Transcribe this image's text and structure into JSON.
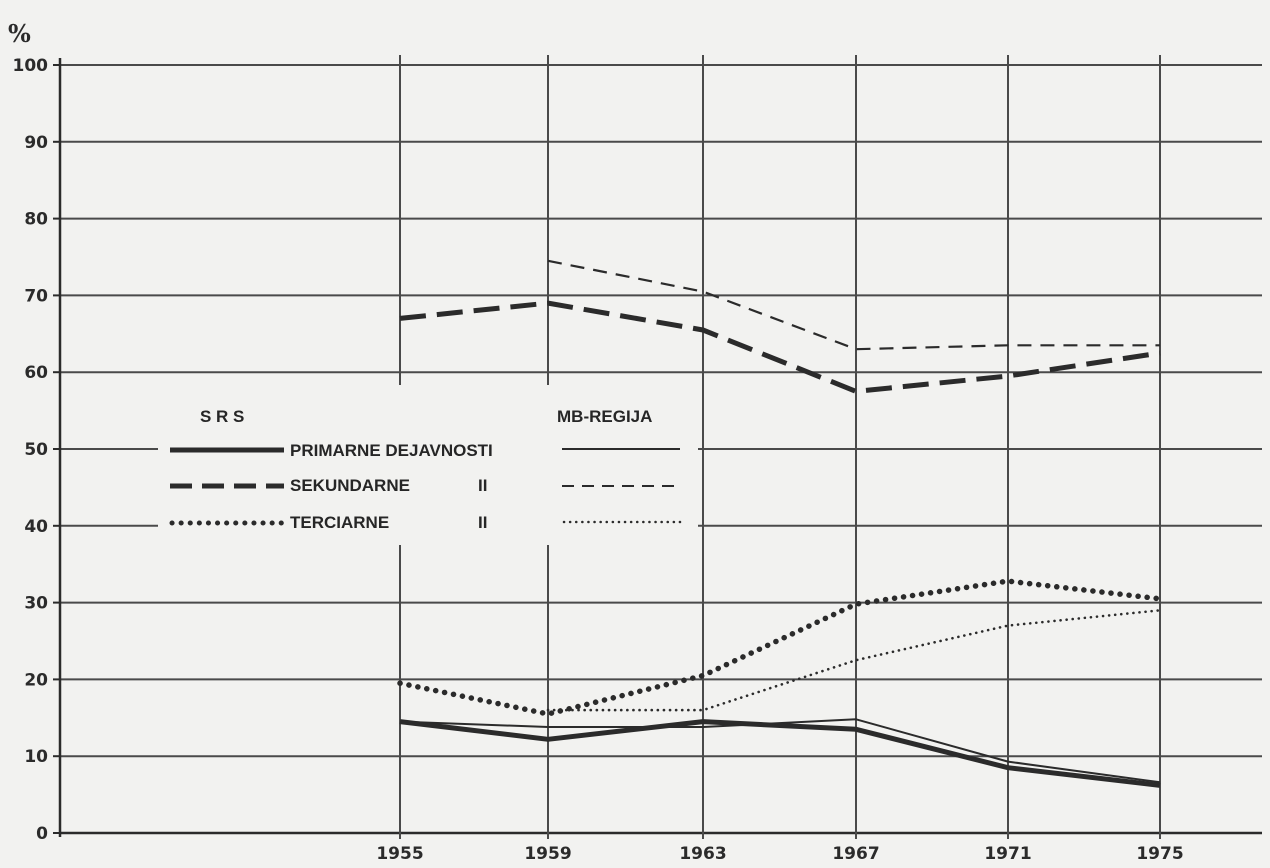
{
  "chart_data": {
    "type": "line",
    "unit_label": "%",
    "x": [
      "1955",
      "1959",
      "1963",
      "1967",
      "1971",
      "1975"
    ],
    "y_ticks": [
      "0",
      "10",
      "20",
      "30",
      "40",
      "50",
      "60",
      "70",
      "80",
      "90",
      "100"
    ],
    "ylim": [
      0,
      100
    ],
    "grid": true,
    "legend": {
      "placement": "center-left",
      "srs_header": "S R S",
      "mb_header": "MB-REGIJA",
      "rows": [
        {
          "label": "PRIMARNE DEJAVNOSTI"
        },
        {
          "label": "SEKUNDARNE",
          "ditto": "II"
        },
        {
          "label": "TERCIARNE",
          "ditto": "II"
        }
      ]
    },
    "series": [
      {
        "key": "srs_primarne",
        "group": "SRS",
        "sector": "primarne",
        "style": "solid",
        "weight": "heavy",
        "values": [
          14.5,
          12.2,
          14.5,
          13.5,
          8.5,
          6.2
        ]
      },
      {
        "key": "mb_primarne",
        "group": "MB-REGIJA",
        "sector": "primarne",
        "style": "solid",
        "weight": "light",
        "values": [
          14.5,
          13.8,
          13.8,
          14.8,
          9.3,
          6.6
        ]
      },
      {
        "key": "srs_sekundarne",
        "group": "SRS",
        "sector": "sekundarne",
        "style": "dashed",
        "weight": "heavy",
        "values": [
          67.0,
          69.0,
          65.5,
          57.5,
          59.5,
          62.5
        ]
      },
      {
        "key": "mb_sekundarne",
        "group": "MB-REGIJA",
        "sector": "sekundarne",
        "style": "dashed",
        "weight": "light",
        "values": [
          null,
          74.5,
          70.5,
          63.0,
          63.5,
          63.5
        ]
      },
      {
        "key": "srs_terciarne",
        "group": "SRS",
        "sector": "terciarne",
        "style": "dotted",
        "weight": "heavy",
        "values": [
          19.5,
          15.5,
          20.5,
          29.8,
          32.8,
          30.5
        ]
      },
      {
        "key": "mb_terciarne",
        "group": "MB-REGIJA",
        "sector": "terciarne",
        "style": "dotted",
        "weight": "light",
        "values": [
          null,
          16.0,
          16.0,
          22.5,
          27.0,
          29.0
        ]
      }
    ],
    "colors": {
      "ink": "#2b2b2b",
      "grid": "#4a4a4a",
      "background": "#f2f2f0"
    }
  }
}
